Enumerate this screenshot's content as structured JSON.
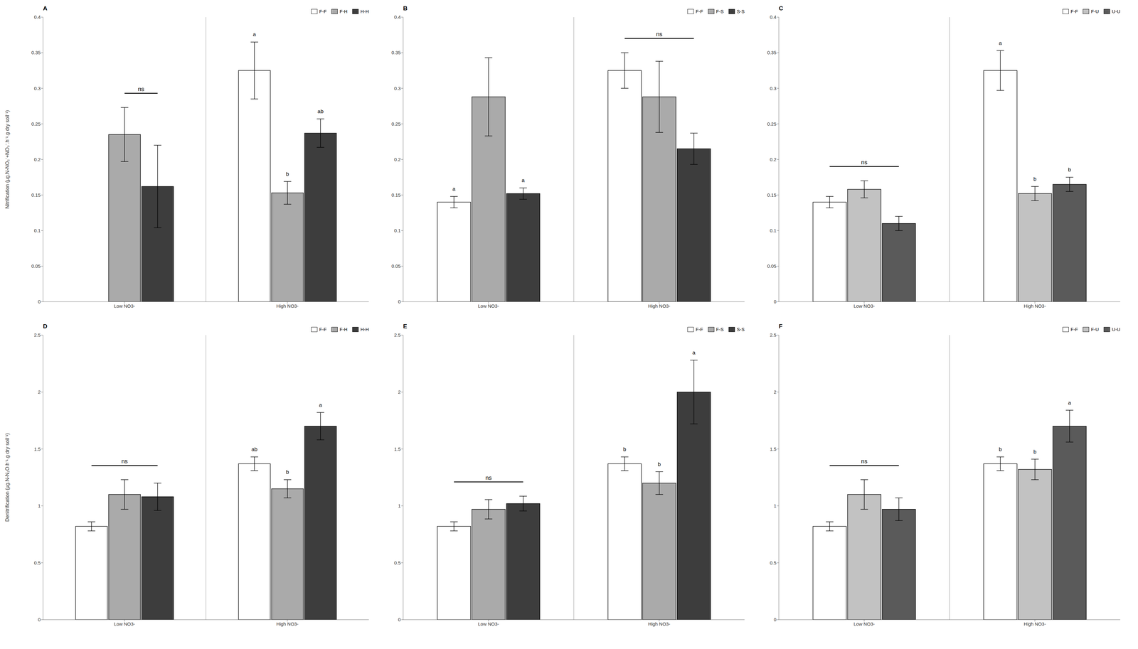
{
  "chart_data": [
    {
      "type": "bar",
      "title": "A",
      "y_label": "Nitrification (µg.N-NO₂⁻+NO₃⁻.h⁻¹.g dry soil⁻¹)",
      "categories": [
        "Low NO3-",
        "High NO3-"
      ],
      "series": [
        {
          "name": "F-F",
          "color": "#ffffff",
          "values": [
            null,
            0.325
          ],
          "errors": [
            null,
            0.04
          ]
        },
        {
          "name": "F-H",
          "color": "#aaaaaa",
          "values": [
            0.235,
            0.153
          ],
          "errors": [
            0.038,
            0.016
          ]
        },
        {
          "name": "H-H",
          "color": "#3d3d3d",
          "values": [
            0.162,
            0.237
          ],
          "errors": [
            0.058,
            0.02
          ]
        }
      ],
      "ylim": [
        0,
        0.4
      ],
      "yticks": [
        0,
        0.05,
        0.1,
        0.15,
        0.2,
        0.25,
        0.3,
        0.35,
        0.4
      ],
      "grid": false,
      "legend": "upper right",
      "annotations": [
        {
          "text": "ns",
          "category": "Low NO3-",
          "series": [
            "F-H",
            "H-H"
          ]
        },
        {
          "text": "a",
          "category": "High NO3-",
          "series": "F-F"
        },
        {
          "text": "b",
          "category": "High NO3-",
          "series": "F-H"
        },
        {
          "text": "ab",
          "category": "High NO3-",
          "series": "H-H"
        }
      ]
    },
    {
      "type": "bar",
      "title": "B",
      "categories": [
        "Low NO3-",
        "High NO3-"
      ],
      "series": [
        {
          "name": "F-F",
          "color": "#ffffff",
          "values": [
            0.14,
            0.325
          ],
          "errors": [
            0.008,
            0.025
          ]
        },
        {
          "name": "F-S",
          "color": "#aaaaaa",
          "values": [
            0.288,
            0.288
          ],
          "errors": [
            0.055,
            0.05
          ]
        },
        {
          "name": "S-S",
          "color": "#3d3d3d",
          "values": [
            0.152,
            0.215
          ],
          "errors": [
            0.008,
            0.022
          ]
        }
      ],
      "ylim": [
        0,
        0.4
      ],
      "yticks": [
        0,
        0.05,
        0.1,
        0.15,
        0.2,
        0.25,
        0.3,
        0.35,
        0.4
      ],
      "grid": false,
      "legend": "upper right",
      "annotations": [
        {
          "text": "a",
          "category": "Low NO3-",
          "series": "F-F"
        },
        {
          "text": "a",
          "category": "Low NO3-",
          "series": "S-S"
        },
        {
          "text": "ns",
          "category": "High NO3-",
          "series": [
            "F-F",
            "S-S"
          ]
        }
      ]
    },
    {
      "type": "bar",
      "title": "C",
      "categories": [
        "Low NO3-",
        "High NO3-"
      ],
      "series": [
        {
          "name": "F-F",
          "color": "#ffffff",
          "values": [
            0.14,
            0.325
          ],
          "errors": [
            0.008,
            0.028
          ]
        },
        {
          "name": "F-U",
          "color": "#c2c2c2",
          "values": [
            0.158,
            0.152
          ],
          "errors": [
            0.012,
            0.01
          ]
        },
        {
          "name": "U-U",
          "color": "#5a5a5a",
          "values": [
            0.11,
            0.165
          ],
          "errors": [
            0.01,
            0.01
          ]
        }
      ],
      "ylim": [
        0,
        0.4
      ],
      "yticks": [
        0,
        0.05,
        0.1,
        0.15,
        0.2,
        0.25,
        0.3,
        0.35,
        0.4
      ],
      "grid": false,
      "legend": "upper right",
      "annotations": [
        {
          "text": "ns",
          "category": "Low NO3-",
          "series": [
            "F-F",
            "U-U"
          ]
        },
        {
          "text": "a",
          "category": "High NO3-",
          "series": "F-F"
        },
        {
          "text": "b",
          "category": "High NO3-",
          "series": "F-U"
        },
        {
          "text": "b",
          "category": "High NO3-",
          "series": "U-U"
        }
      ]
    },
    {
      "type": "bar",
      "title": "D",
      "y_label": "Denitrification (µg.N-N₂O.h⁻¹.g dry soil⁻¹)",
      "categories": [
        "Low NO3-",
        "High NO3-"
      ],
      "series": [
        {
          "name": "F-F",
          "color": "#ffffff",
          "values": [
            0.82,
            1.37
          ],
          "errors": [
            0.04,
            0.06
          ]
        },
        {
          "name": "F-H",
          "color": "#aaaaaa",
          "values": [
            1.1,
            1.15
          ],
          "errors": [
            0.13,
            0.08
          ]
        },
        {
          "name": "H-H",
          "color": "#3d3d3d",
          "values": [
            1.08,
            1.7
          ],
          "errors": [
            0.12,
            0.12
          ]
        }
      ],
      "ylim": [
        0,
        2.5
      ],
      "yticks": [
        0,
        0.5,
        1,
        1.5,
        2,
        2.5
      ],
      "grid": false,
      "legend": "upper right",
      "annotations": [
        {
          "text": "ns",
          "category": "Low NO3-",
          "series": [
            "F-F",
            "H-H"
          ]
        },
        {
          "text": "ab",
          "category": "High NO3-",
          "series": "F-F"
        },
        {
          "text": "b",
          "category": "High NO3-",
          "series": "F-H"
        },
        {
          "text": "a",
          "category": "High NO3-",
          "series": "H-H"
        }
      ]
    },
    {
      "type": "bar",
      "title": "E",
      "categories": [
        "Low NO3-",
        "High NO3-"
      ],
      "series": [
        {
          "name": "F-F",
          "color": "#ffffff",
          "values": [
            0.82,
            1.37
          ],
          "errors": [
            0.04,
            0.06
          ]
        },
        {
          "name": "F-S",
          "color": "#aaaaaa",
          "values": [
            0.97,
            1.2
          ],
          "errors": [
            0.085,
            0.1
          ]
        },
        {
          "name": "S-S",
          "color": "#3d3d3d",
          "values": [
            1.02,
            2.0
          ],
          "errors": [
            0.065,
            0.28
          ]
        }
      ],
      "ylim": [
        0,
        2.5
      ],
      "yticks": [
        0,
        0.5,
        1,
        1.5,
        2,
        2.5
      ],
      "grid": false,
      "legend": "upper right",
      "annotations": [
        {
          "text": "ns",
          "category": "Low NO3-",
          "series": [
            "F-F",
            "S-S"
          ]
        },
        {
          "text": "b",
          "category": "High NO3-",
          "series": "F-F"
        },
        {
          "text": "b",
          "category": "High NO3-",
          "series": "F-S"
        },
        {
          "text": "a",
          "category": "High NO3-",
          "series": "S-S"
        }
      ]
    },
    {
      "type": "bar",
      "title": "F",
      "categories": [
        "Low NO3-",
        "High NO3-"
      ],
      "series": [
        {
          "name": "F-F",
          "color": "#ffffff",
          "values": [
            0.82,
            1.37
          ],
          "errors": [
            0.04,
            0.06
          ]
        },
        {
          "name": "F-U",
          "color": "#c2c2c2",
          "values": [
            1.1,
            1.32
          ],
          "errors": [
            0.13,
            0.09
          ]
        },
        {
          "name": "U-U",
          "color": "#5a5a5a",
          "values": [
            0.97,
            1.7
          ],
          "errors": [
            0.1,
            0.14
          ]
        }
      ],
      "ylim": [
        0,
        2.5
      ],
      "yticks": [
        0,
        0.5,
        1,
        1.5,
        2,
        2.5
      ],
      "grid": false,
      "legend": "upper right",
      "annotations": [
        {
          "text": "ns",
          "category": "Low NO3-",
          "series": [
            "F-F",
            "U-U"
          ]
        },
        {
          "text": "b",
          "category": "High NO3-",
          "series": "F-F"
        },
        {
          "text": "b",
          "category": "High NO3-",
          "series": "F-U"
        },
        {
          "text": "a",
          "category": "High NO3-",
          "series": "U-U"
        }
      ]
    }
  ]
}
